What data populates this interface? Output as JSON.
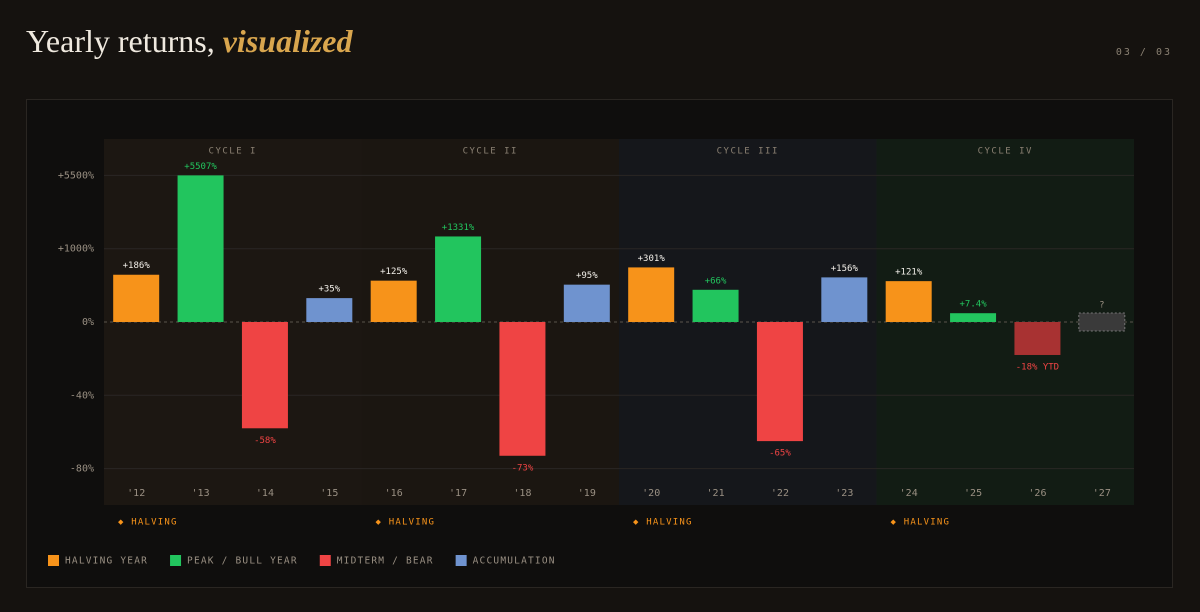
{
  "header": {
    "title": "Yearly returns,",
    "title_emphasis": "visualized",
    "page": "03 / 03"
  },
  "chart_data": {
    "type": "bar",
    "categories": [
      "'12",
      "'13",
      "'14",
      "'15",
      "'16",
      "'17",
      "'18",
      "'19",
      "'20",
      "'21",
      "'22",
      "'23",
      "'24",
      "'25",
      "'26",
      "'27"
    ],
    "values": [
      186,
      5507,
      -58,
      35,
      125,
      1331,
      -73,
      95,
      301,
      66,
      -65,
      156,
      121,
      7.4,
      -18,
      null
    ],
    "value_labels": [
      "+186%",
      "+5507%",
      "-58%",
      "+35%",
      "+125%",
      "+1331%",
      "-73%",
      "+95%",
      "+301%",
      "+66%",
      "-65%",
      "+156%",
      "+121%",
      "+7.4%",
      "-18% YTD",
      "?"
    ],
    "colors": [
      "#f7931a",
      "#22c55e",
      "#ef4444",
      "#6f93cf",
      "#f7931a",
      "#22c55e",
      "#ef4444",
      "#6f93cf",
      "#f7931a",
      "#22c55e",
      "#ef4444",
      "#6f93cf",
      "#f7931a",
      "#22c55e",
      "#a83232",
      "#3a3a3a"
    ],
    "ylim": [
      -80,
      5500
    ],
    "yticks": [
      {
        "value": 5500,
        "label": "+5500%"
      },
      {
        "value": 1000,
        "label": "+1000%"
      },
      {
        "value": 0,
        "label": "0%"
      },
      {
        "value": -40,
        "label": "-40%"
      },
      {
        "value": -80,
        "label": "-80%"
      }
    ],
    "grid": true,
    "cycles": [
      "CYCLE I",
      "CYCLE II",
      "CYCLE III",
      "CYCLE IV"
    ],
    "cycle_colors": [
      "#1c1712",
      "#1b1611",
      "#15171b",
      "#121c14"
    ],
    "halving_markers": [
      "◆ HALVING",
      "◆ HALVING",
      "◆ HALVING",
      "◆ HALVING"
    ],
    "legend": [
      {
        "name": "HALVING YEAR",
        "color": "#f7931a"
      },
      {
        "name": "PEAK / BULL YEAR",
        "color": "#22c55e"
      },
      {
        "name": "MIDTERM / BEAR",
        "color": "#ef4444"
      },
      {
        "name": "ACCUMULATION",
        "color": "#6f93cf"
      }
    ]
  }
}
